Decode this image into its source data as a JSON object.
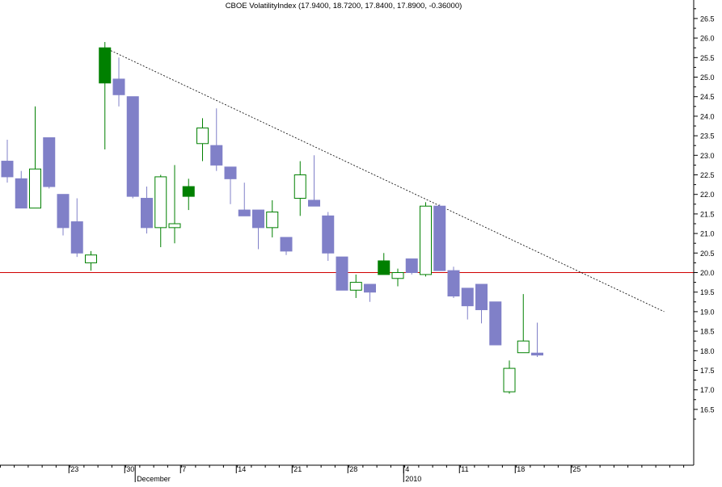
{
  "title": "CBOE VolatilityIndex (17.9400, 18.7200, 17.8400, 17.8900, -0.36000)",
  "colors": {
    "up": "#008000",
    "down": "#8080c8",
    "up_hollow_edge": "#008000",
    "down_hollow_edge": "#7070b0",
    "reference_line": "#d00000",
    "trend_line": "#000000",
    "axis": "#000000"
  },
  "chart_data": {
    "type": "candlestick",
    "title": "CBOE VolatilityIndex (17.9400, 18.7200, 17.8400, 17.8900, -0.36000)",
    "ylim": [
      16.2,
      27.0
    ],
    "y_ticks": [
      "16.5",
      "17.0",
      "17.5",
      "18.0",
      "18.5",
      "19.0",
      "19.5",
      "20.0",
      "20.5",
      "21.0",
      "21.5",
      "22.0",
      "22.5",
      "23.0",
      "23.5",
      "24.0",
      "24.5",
      "25.0",
      "25.5",
      "26.0",
      "26.5"
    ],
    "x_ticks": [
      {
        "label": "23",
        "slot": 4.45
      },
      {
        "label": "30",
        "slot": 8.45
      },
      {
        "label": "7",
        "slot": 12.45
      },
      {
        "label": "14",
        "slot": 16.45
      },
      {
        "label": "21",
        "slot": 20.45
      },
      {
        "label": "28",
        "slot": 24.45
      },
      {
        "label": "4",
        "slot": 28.45
      },
      {
        "label": "11",
        "slot": 32.45
      },
      {
        "label": "18",
        "slot": 36.45
      },
      {
        "label": "25",
        "slot": 40.45
      }
    ],
    "month_labels": [
      {
        "label": "December",
        "slot": 9.2
      },
      {
        "label": "2010",
        "slot": 28.45
      }
    ],
    "reference_line": {
      "y": 20.0
    },
    "trend_line": {
      "from": {
        "slot": 7.0,
        "y": 25.75
      },
      "to": {
        "slot": 47.1,
        "y": 19.0
      }
    },
    "candles": [
      {
        "slot": 0,
        "open": 22.85,
        "high": 23.4,
        "low": 22.3,
        "close": 22.45
      },
      {
        "slot": 1,
        "open": 22.4,
        "high": 22.6,
        "low": 21.65,
        "close": 21.65
      },
      {
        "slot": 2,
        "open": 21.65,
        "high": 24.25,
        "low": 21.65,
        "close": 22.65
      },
      {
        "slot": 3,
        "open": 23.45,
        "high": 23.45,
        "low": 22.15,
        "close": 22.2
      },
      {
        "slot": 4,
        "open": 22.0,
        "high": 22.0,
        "low": 20.95,
        "close": 21.15
      },
      {
        "slot": 5,
        "open": 21.3,
        "high": 21.9,
        "low": 20.4,
        "close": 20.5
      },
      {
        "slot": 6,
        "open": 20.25,
        "high": 20.55,
        "low": 20.05,
        "close": 20.45
      },
      {
        "slot": 7,
        "open": 24.85,
        "high": 25.9,
        "low": 23.15,
        "close": 25.75
      },
      {
        "slot": 8,
        "open": 24.95,
        "high": 25.5,
        "low": 24.25,
        "close": 24.55
      },
      {
        "slot": 9,
        "open": 24.5,
        "high": 24.5,
        "low": 21.9,
        "close": 21.95
      },
      {
        "slot": 10,
        "open": 21.9,
        "high": 22.2,
        "low": 21.0,
        "close": 21.15
      },
      {
        "slot": 11,
        "open": 21.15,
        "high": 22.5,
        "low": 20.65,
        "close": 22.45
      },
      {
        "slot": 12,
        "open": 21.15,
        "high": 22.75,
        "low": 20.75,
        "close": 21.25
      },
      {
        "slot": 13,
        "open": 21.95,
        "high": 22.4,
        "low": 21.6,
        "close": 22.2
      },
      {
        "slot": 14,
        "open": 23.3,
        "high": 23.95,
        "low": 22.85,
        "close": 23.7
      },
      {
        "slot": 15,
        "open": 23.25,
        "high": 24.2,
        "low": 22.6,
        "close": 22.75
      },
      {
        "slot": 16,
        "open": 22.7,
        "high": 22.7,
        "low": 21.75,
        "close": 22.4
      },
      {
        "slot": 17,
        "open": 21.6,
        "high": 22.3,
        "low": 21.45,
        "close": 21.45
      },
      {
        "slot": 18,
        "open": 21.6,
        "high": 21.6,
        "low": 20.6,
        "close": 21.15
      },
      {
        "slot": 19,
        "open": 21.15,
        "high": 21.85,
        "low": 20.9,
        "close": 21.55
      },
      {
        "slot": 20,
        "open": 20.9,
        "high": 20.9,
        "low": 20.45,
        "close": 20.55
      },
      {
        "slot": 21,
        "open": 21.9,
        "high": 22.85,
        "low": 21.45,
        "close": 22.5
      },
      {
        "slot": 22,
        "open": 21.85,
        "high": 23.0,
        "low": 21.7,
        "close": 21.7
      },
      {
        "slot": 23,
        "open": 21.45,
        "high": 21.55,
        "low": 20.3,
        "close": 20.5
      },
      {
        "slot": 24,
        "open": 20.4,
        "high": 20.4,
        "low": 19.55,
        "close": 19.55
      },
      {
        "slot": 25,
        "open": 19.55,
        "high": 19.95,
        "low": 19.35,
        "close": 19.75
      },
      {
        "slot": 26,
        "open": 19.7,
        "high": 19.7,
        "low": 19.25,
        "close": 19.5
      },
      {
        "slot": 27,
        "open": 19.95,
        "high": 20.5,
        "low": 19.95,
        "close": 20.3
      },
      {
        "slot": 28,
        "open": 19.85,
        "high": 20.1,
        "low": 19.65,
        "close": 20.0
      },
      {
        "slot": 29,
        "open": 20.35,
        "high": 20.35,
        "low": 19.95,
        "close": 20.0
      },
      {
        "slot": 30,
        "open": 19.95,
        "high": 21.8,
        "low": 19.9,
        "close": 21.7
      },
      {
        "slot": 31,
        "open": 21.7,
        "high": 21.75,
        "low": 20.05,
        "close": 20.05
      },
      {
        "slot": 32,
        "open": 20.05,
        "high": 20.15,
        "low": 19.35,
        "close": 19.4
      },
      {
        "slot": 33,
        "open": 19.6,
        "high": 19.6,
        "low": 18.8,
        "close": 19.15
      },
      {
        "slot": 34,
        "open": 19.7,
        "high": 19.7,
        "low": 18.7,
        "close": 19.05
      },
      {
        "slot": 35,
        "open": 19.25,
        "high": 19.25,
        "low": 18.15,
        "close": 18.15
      },
      {
        "slot": 36,
        "open": 16.95,
        "high": 17.75,
        "low": 16.9,
        "close": 17.55
      },
      {
        "slot": 37,
        "open": 17.95,
        "high": 19.45,
        "low": 17.95,
        "close": 18.25
      },
      {
        "slot": 38,
        "open": 17.94,
        "high": 18.72,
        "low": 17.84,
        "close": 17.89
      }
    ]
  }
}
